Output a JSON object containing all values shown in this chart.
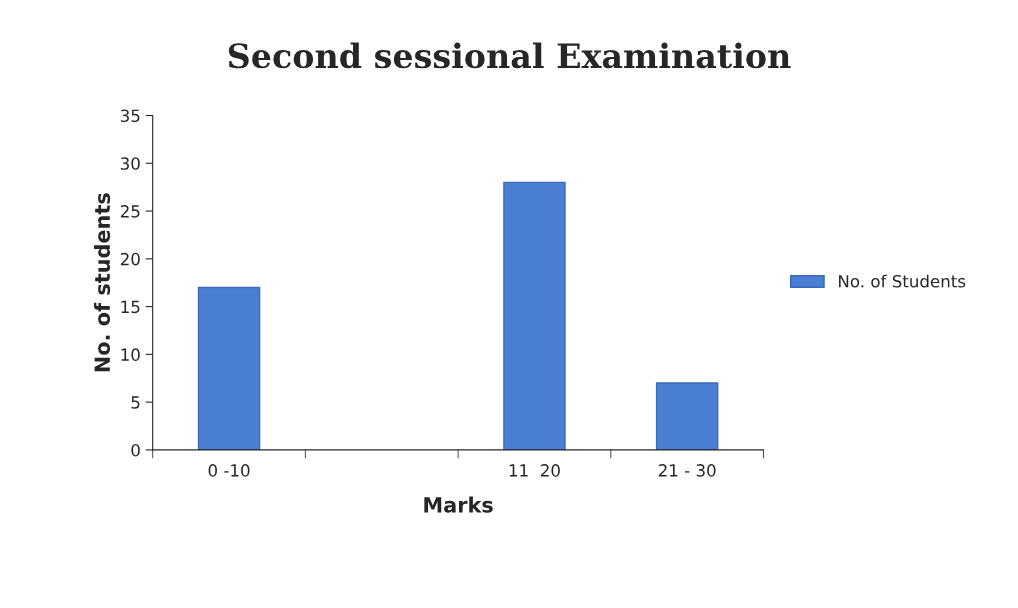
{
  "chart_data": {
    "type": "bar",
    "title": "Second sessional Examination",
    "xlabel": "Marks",
    "ylabel": "No. of students",
    "categories": [
      "0 -10",
      null,
      "11  20",
      "21 - 30"
    ],
    "series": [
      {
        "name": "No. of Students",
        "color": "#4a7fd4",
        "values": [
          17,
          null,
          28,
          7
        ]
      }
    ],
    "ylim": [
      0,
      35
    ],
    "yticks": [
      0,
      5,
      10,
      15,
      20,
      25,
      30,
      35
    ],
    "grid": false,
    "legend": "right"
  }
}
